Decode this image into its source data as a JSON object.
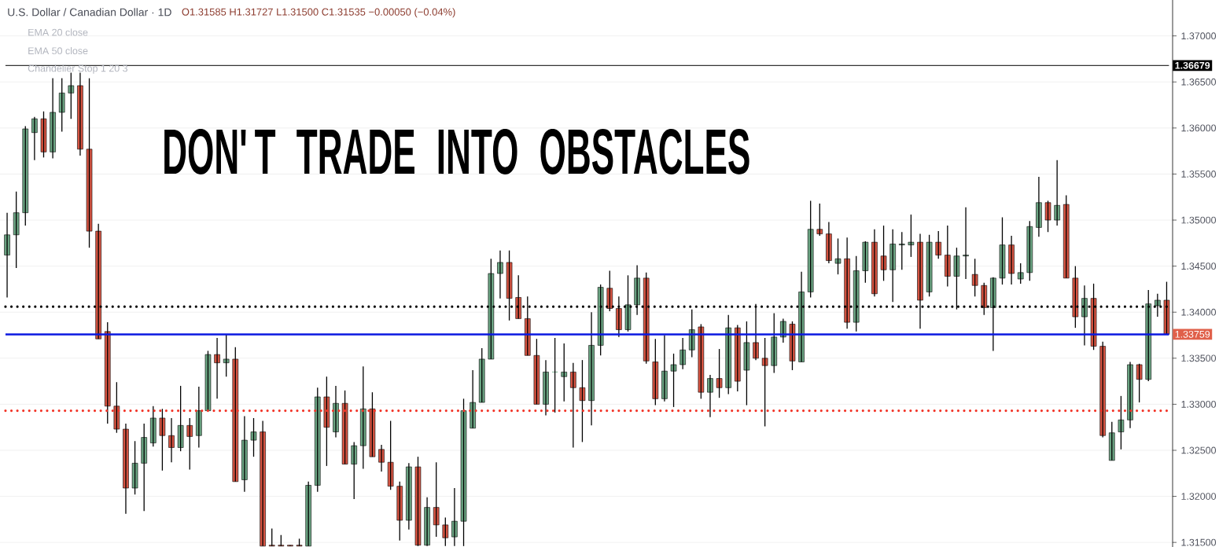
{
  "chart_data": {
    "type": "candlestick",
    "title": "U.S. Dollar / Canadian Dollar · 1D",
    "subtitle": "O1.31585 H1.31727 L1.31500 C1.31535 −0.00050 (−0.04%)",
    "categories": [
      null,
      null,
      null,
      null,
      null,
      null,
      null,
      null,
      null,
      null,
      null,
      null,
      null,
      null,
      null,
      null,
      null,
      null,
      null,
      null,
      null,
      null,
      null,
      null,
      null,
      null,
      null,
      null,
      null,
      null,
      null,
      null,
      null,
      null,
      null,
      null,
      null,
      null,
      null,
      null,
      null,
      null,
      null,
      null,
      null,
      null,
      null,
      null,
      null,
      null,
      null,
      null,
      null,
      null,
      null,
      null,
      null,
      null,
      null,
      null,
      null,
      null,
      null,
      null,
      null,
      null,
      null,
      null,
      null,
      null,
      null,
      null,
      null,
      null,
      null,
      null,
      null,
      null,
      null,
      null,
      null,
      null,
      null,
      null,
      null,
      null,
      null,
      null,
      null,
      null,
      null,
      null,
      null,
      null,
      null,
      null,
      null,
      null,
      null,
      null,
      null,
      null,
      null,
      null,
      null,
      null,
      null,
      null,
      null,
      null,
      null,
      null,
      null,
      null,
      null,
      null,
      null,
      null,
      null,
      null,
      null,
      null,
      null,
      null,
      null,
      null,
      null,
      null
    ],
    "ohlc": [
      [
        1.3462,
        1.3508,
        1.3416,
        1.3484
      ],
      [
        1.3484,
        1.3531,
        1.3448,
        1.3508
      ],
      [
        1.3508,
        1.3602,
        1.3494,
        1.3599
      ],
      [
        1.3595,
        1.3612,
        1.3565,
        1.361
      ],
      [
        1.361,
        1.3618,
        1.3568,
        1.3574
      ],
      [
        1.3574,
        1.3654,
        1.3567,
        1.3617
      ],
      [
        1.3617,
        1.3654,
        1.3596,
        1.3638
      ],
      [
        1.3638,
        1.366,
        1.361,
        1.3646
      ],
      [
        1.3646,
        1.366,
        1.357,
        1.3577
      ],
      [
        1.3577,
        1.3654,
        1.347,
        1.3488
      ],
      [
        1.3488,
        1.3496,
        1.3371,
        1.3371
      ],
      [
        1.3379,
        1.3389,
        1.3279,
        1.3298
      ],
      [
        1.3298,
        1.3324,
        1.3269,
        1.3273
      ],
      [
        1.3273,
        1.3279,
        1.3181,
        1.3209
      ],
      [
        1.3209,
        1.326,
        1.3202,
        1.3236
      ],
      [
        1.3236,
        1.3279,
        1.3184,
        1.3264
      ],
      [
        1.3258,
        1.3298,
        1.3254,
        1.3285
      ],
      [
        1.3285,
        1.3295,
        1.3228,
        1.3266
      ],
      [
        1.3266,
        1.3285,
        1.3237,
        1.3253
      ],
      [
        1.3253,
        1.332,
        1.3249,
        1.3277
      ],
      [
        1.3277,
        1.3285,
        1.3229,
        1.3265
      ],
      [
        1.3266,
        1.3319,
        1.3253,
        1.3293
      ],
      [
        1.3293,
        1.3358,
        1.3293,
        1.3354
      ],
      [
        1.3354,
        1.3372,
        1.3306,
        1.3345
      ],
      [
        1.3345,
        1.3376,
        1.333,
        1.3349
      ],
      [
        1.3349,
        1.3362,
        1.3216,
        1.3216
      ],
      [
        1.3218,
        1.3287,
        1.3205,
        1.3261
      ],
      [
        1.3261,
        1.3285,
        1.3243,
        1.327
      ],
      [
        1.327,
        1.3282,
        1.3146,
        1.3146
      ],
      [
        1.3147,
        1.3165,
        1.3146,
        1.3146
      ],
      [
        1.3147,
        1.3158,
        1.3146,
        1.3146
      ],
      [
        1.3147,
        1.3147,
        1.3146,
        1.3146
      ],
      [
        1.3147,
        1.3154,
        1.3146,
        1.3146
      ],
      [
        1.3146,
        1.3216,
        1.3146,
        1.3212
      ],
      [
        1.3212,
        1.3318,
        1.3205,
        1.3308
      ],
      [
        1.3308,
        1.333,
        1.3233,
        1.3275
      ],
      [
        1.327,
        1.332,
        1.3264,
        1.3301
      ],
      [
        1.3301,
        1.3315,
        1.3235,
        1.3235
      ],
      [
        1.3235,
        1.3259,
        1.3197,
        1.3255
      ],
      [
        1.3255,
        1.3341,
        1.323,
        1.3295
      ],
      [
        1.3295,
        1.3313,
        1.3243,
        1.3243
      ],
      [
        1.3251,
        1.3256,
        1.3227,
        1.3237
      ],
      [
        1.3237,
        1.3282,
        1.3207,
        1.3211
      ],
      [
        1.3211,
        1.3216,
        1.3152,
        1.3174
      ],
      [
        1.3174,
        1.3236,
        1.3164,
        1.3232
      ],
      [
        1.3232,
        1.3243,
        1.3146,
        1.3147
      ],
      [
        1.3147,
        1.3199,
        1.3146,
        1.3188
      ],
      [
        1.3188,
        1.3237,
        1.3156,
        1.3169
      ],
      [
        1.3169,
        1.3177,
        1.3146,
        1.3155
      ],
      [
        1.3156,
        1.3209,
        1.3146,
        1.3173
      ],
      [
        1.3173,
        1.3306,
        1.3146,
        1.3293
      ],
      [
        1.3274,
        1.3337,
        1.3274,
        1.3302
      ],
      [
        1.3302,
        1.3361,
        1.3302,
        1.3349
      ],
      [
        1.3349,
        1.3458,
        1.3349,
        1.3442
      ],
      [
        1.3442,
        1.3467,
        1.3415,
        1.3454
      ],
      [
        1.3454,
        1.3467,
        1.3391,
        1.3415
      ],
      [
        1.3416,
        1.344,
        1.3393,
        1.3393
      ],
      [
        1.3393,
        1.3417,
        1.3353,
        1.3353
      ],
      [
        1.3353,
        1.3371,
        1.33,
        1.33
      ],
      [
        1.33,
        1.3348,
        1.3288,
        1.3335
      ],
      [
        1.3335,
        1.3372,
        1.3291,
        1.3335
      ],
      [
        1.333,
        1.3366,
        1.3303,
        1.3335
      ],
      [
        1.3335,
        1.3345,
        1.3253,
        1.3318
      ],
      [
        1.3318,
        1.3348,
        1.3259,
        1.3304
      ],
      [
        1.3304,
        1.34,
        1.3277,
        1.3364
      ],
      [
        1.3364,
        1.343,
        1.3353,
        1.3427
      ],
      [
        1.3426,
        1.3445,
        1.3401,
        1.3404
      ],
      [
        1.3404,
        1.3417,
        1.3373,
        1.3381
      ],
      [
        1.3381,
        1.344,
        1.3379,
        1.3408
      ],
      [
        1.3408,
        1.3451,
        1.3397,
        1.3437
      ],
      [
        1.3437,
        1.3443,
        1.3344,
        1.3347
      ],
      [
        1.3346,
        1.3371,
        1.3299,
        1.3306
      ],
      [
        1.3306,
        1.3375,
        1.3303,
        1.3336
      ],
      [
        1.3336,
        1.3355,
        1.3297,
        1.3343
      ],
      [
        1.3343,
        1.3372,
        1.3338,
        1.3359
      ],
      [
        1.3359,
        1.3403,
        1.3351,
        1.3381
      ],
      [
        1.3384,
        1.3387,
        1.3306,
        1.3313
      ],
      [
        1.3313,
        1.3332,
        1.3286,
        1.3328
      ],
      [
        1.3328,
        1.336,
        1.3307,
        1.3318
      ],
      [
        1.3318,
        1.3397,
        1.3311,
        1.3383
      ],
      [
        1.3383,
        1.3386,
        1.3314,
        1.3325
      ],
      [
        1.3337,
        1.339,
        1.3299,
        1.3367
      ],
      [
        1.3367,
        1.3409,
        1.3348,
        1.335
      ],
      [
        1.335,
        1.3372,
        1.3276,
        1.3342
      ],
      [
        1.3342,
        1.3399,
        1.3334,
        1.3373
      ],
      [
        1.3373,
        1.3393,
        1.3367,
        1.339
      ],
      [
        1.3387,
        1.339,
        1.3337,
        1.3347
      ],
      [
        1.3346,
        1.3444,
        1.3346,
        1.3422
      ],
      [
        1.3422,
        1.3521,
        1.3416,
        1.349
      ],
      [
        1.349,
        1.3518,
        1.3483,
        1.3485
      ],
      [
        1.3485,
        1.3498,
        1.3453,
        1.3456
      ],
      [
        1.3453,
        1.348,
        1.3441,
        1.3458
      ],
      [
        1.3458,
        1.3481,
        1.3382,
        1.3389
      ],
      [
        1.3389,
        1.3461,
        1.3379,
        1.3445
      ],
      [
        1.3445,
        1.3477,
        1.3432,
        1.3476
      ],
      [
        1.3476,
        1.349,
        1.3417,
        1.342
      ],
      [
        1.3461,
        1.3494,
        1.3434,
        1.3446
      ],
      [
        1.3446,
        1.349,
        1.3411,
        1.3474
      ],
      [
        1.3473,
        1.3487,
        1.3446,
        1.3474
      ],
      [
        1.3473,
        1.3506,
        1.346,
        1.3476
      ],
      [
        1.3476,
        1.3485,
        1.3382,
        1.3413
      ],
      [
        1.3422,
        1.3484,
        1.3417,
        1.3476
      ],
      [
        1.3476,
        1.3488,
        1.3458,
        1.3462
      ],
      [
        1.3462,
        1.3494,
        1.3428,
        1.3439
      ],
      [
        1.3439,
        1.347,
        1.3403,
        1.3461
      ],
      [
        1.3461,
        1.3514,
        1.3436,
        1.3462
      ],
      [
        1.3441,
        1.3458,
        1.3417,
        1.3429
      ],
      [
        1.3429,
        1.3432,
        1.3397,
        1.3405
      ],
      [
        1.3405,
        1.3438,
        1.3358,
        1.3437
      ],
      [
        1.3437,
        1.3503,
        1.343,
        1.3473
      ],
      [
        1.3473,
        1.3483,
        1.343,
        1.3442
      ],
      [
        1.3436,
        1.3453,
        1.3431,
        1.3443
      ],
      [
        1.3443,
        1.3499,
        1.3434,
        1.3493
      ],
      [
        1.3492,
        1.3547,
        1.3482,
        1.3519
      ],
      [
        1.3519,
        1.3521,
        1.3487,
        1.35
      ],
      [
        1.35,
        1.3565,
        1.3494,
        1.3516
      ],
      [
        1.3517,
        1.3527,
        1.3437,
        1.3437
      ],
      [
        1.3437,
        1.345,
        1.3383,
        1.3395
      ],
      [
        1.3395,
        1.3429,
        1.3364,
        1.3415
      ],
      [
        1.3415,
        1.3431,
        1.3359,
        1.3363
      ],
      [
        1.3363,
        1.3368,
        1.3264,
        1.3266
      ],
      [
        1.3239,
        1.3281,
        1.3239,
        1.3269
      ],
      [
        1.327,
        1.3309,
        1.3251,
        1.3283
      ],
      [
        1.3283,
        1.3346,
        1.3274,
        1.3343
      ],
      [
        1.3343,
        1.3344,
        1.3302,
        1.3327
      ],
      [
        1.3327,
        1.3424,
        1.3325,
        1.3409
      ],
      [
        1.3407,
        1.342,
        1.3395,
        1.3413
      ],
      [
        1.3413,
        1.3433,
        1.3376,
        1.3376
      ]
    ],
    "colors": [
      "#6ba583",
      "#6ba583",
      "#6ba583",
      "#6ba583",
      "#d75442",
      "#6ba583",
      "#6ba583",
      "#6ba583",
      "#d75442",
      "#d75442",
      "#d75442",
      "#d75442",
      "#d75442",
      "#d75442",
      "#6ba583",
      "#6ba583",
      "#6ba583",
      "#d75442",
      "#d75442",
      "#6ba583",
      "#d75442",
      "#6ba583",
      "#6ba583",
      "#d75442",
      "#6ba583",
      "#d75442",
      "#6ba583",
      "#6ba583",
      "#d75442",
      "#d75442",
      "#d75442",
      "#d75442",
      "#d75442",
      "#6ba583",
      "#6ba583",
      "#d75442",
      "#6ba583",
      "#d75442",
      "#6ba583",
      "#6ba583",
      "#d75442",
      "#d75442",
      "#d75442",
      "#d75442",
      "#6ba583",
      "#d75442",
      "#6ba583",
      "#d75442",
      "#d75442",
      "#6ba583",
      "#6ba583",
      "#6ba583",
      "#6ba583",
      "#6ba583",
      "#6ba583",
      "#d75442",
      "#d75442",
      "#d75442",
      "#d75442",
      "#6ba583",
      "#6ba583",
      "#6ba583",
      "#d75442",
      "#d75442",
      "#6ba583",
      "#6ba583",
      "#d75442",
      "#d75442",
      "#6ba583",
      "#6ba583",
      "#d75442",
      "#d75442",
      "#6ba583",
      "#6ba583",
      "#6ba583",
      "#6ba583",
      "#d75442",
      "#6ba583",
      "#d75442",
      "#6ba583",
      "#d75442",
      "#6ba583",
      "#d75442",
      "#d75442",
      "#6ba583",
      "#6ba583",
      "#d75442",
      "#6ba583",
      "#6ba583",
      "#d75442",
      "#d75442",
      "#6ba583",
      "#d75442",
      "#6ba583",
      "#6ba583",
      "#d75442",
      "#d75442",
      "#6ba583",
      "#6ba583",
      "#6ba583",
      "#d75442",
      "#6ba583",
      "#d75442",
      "#d75442",
      "#6ba583",
      "#6ba583",
      "#d75442",
      "#d75442",
      "#6ba583",
      "#6ba583",
      "#d75442",
      "#6ba583",
      "#6ba583",
      "#6ba583",
      "#d75442",
      "#6ba583",
      "#d75442",
      "#d75442",
      "#6ba583",
      "#d75442",
      "#d75442",
      "#6ba583",
      "#6ba583",
      "#6ba583",
      "#d75442",
      "#6ba583",
      "#6ba583",
      "#d75442"
    ],
    "ylim": [
      1.3145,
      1.3739
    ],
    "yticks": [
      {
        "value": 1.315,
        "label": "1.31500"
      },
      {
        "value": 1.32,
        "label": "1.32000"
      },
      {
        "value": 1.325,
        "label": "1.32500"
      },
      {
        "value": 1.33,
        "label": "1.33000"
      },
      {
        "value": 1.335,
        "label": "1.33500"
      },
      {
        "value": 1.34,
        "label": "1.34000"
      },
      {
        "value": 1.345,
        "label": "1.34500"
      },
      {
        "value": 1.35,
        "label": "1.35000"
      },
      {
        "value": 1.355,
        "label": "1.35500"
      },
      {
        "value": 1.36,
        "label": "1.36000"
      },
      {
        "value": 1.365,
        "label": "1.36500"
      },
      {
        "value": 1.37,
        "label": "1.37000"
      }
    ],
    "grid": "y",
    "tick_labels": "y",
    "ref_lines": [
      {
        "axis": "y",
        "value": 1.36679,
        "label": "1.36679",
        "color": "#000000",
        "line_style": "solid"
      },
      {
        "axis": "y",
        "value": 1.3406,
        "color": "#000000",
        "line_style": "dotted"
      },
      {
        "axis": "y",
        "value": 1.3293,
        "color": "#f23326",
        "line_style": "dotted"
      },
      {
        "axis": "y",
        "value": 1.33759,
        "color": "#0a18e0",
        "line_style": "solid"
      }
    ],
    "annotations": [
      "EMA 20 close",
      "EMA 50 close",
      "Chandelier Stop 1 20 3",
      "1.33759",
      "DON'T TRADE INTO OBSTACLES"
    ]
  }
}
